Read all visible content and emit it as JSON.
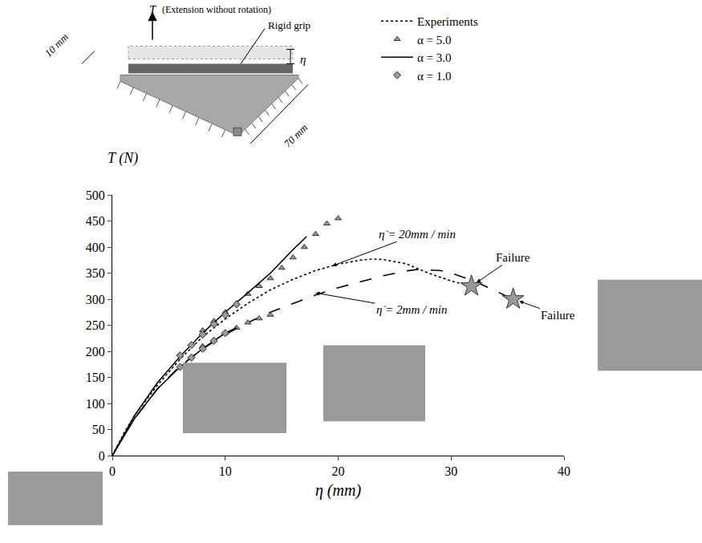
{
  "chart_data": {
    "type": "line",
    "x_label": "η (mm)",
    "y_label": "T (N)",
    "xlim": [
      0,
      40
    ],
    "xticks": [
      0,
      10,
      20,
      30,
      40
    ],
    "ylim": [
      0,
      500
    ],
    "yticks": [
      0,
      50,
      100,
      150,
      200,
      250,
      300,
      350,
      400,
      450,
      500
    ],
    "grid": false,
    "legend": "top right",
    "series": [
      {
        "name": "Experiments",
        "type": "line",
        "line_style": "dot",
        "color": "#000000",
        "x": [
          0,
          1,
          2,
          4,
          6,
          8,
          10,
          12,
          14,
          16,
          18,
          20,
          22,
          23,
          24,
          26,
          28,
          30,
          31.8
        ],
        "values": [
          0,
          42,
          78,
          135,
          185,
          228,
          262,
          292,
          318,
          338,
          355,
          367,
          375,
          377,
          376,
          368,
          350,
          335,
          325
        ]
      },
      {
        "name": "Experiments",
        "type": "line",
        "line_style": "longdash",
        "color": "#000000",
        "x": [
          0,
          1,
          2,
          4,
          6,
          8,
          10,
          12,
          14,
          16,
          18,
          20,
          22,
          24,
          26,
          27,
          28,
          29,
          30,
          32,
          34,
          35.5
        ],
        "values": [
          0,
          38,
          72,
          128,
          172,
          205,
          232,
          255,
          275,
          292,
          308,
          322,
          334,
          345,
          354,
          357,
          356,
          355,
          350,
          335,
          315,
          300
        ]
      },
      {
        "name": "α = 5.0",
        "type": "scatter",
        "marker": "triangle-up",
        "color": "#999999",
        "x": [
          8,
          9,
          10,
          11,
          12,
          13,
          14,
          15,
          16,
          17,
          18,
          19,
          20,
          8,
          9,
          10,
          11,
          12,
          13,
          14
        ],
        "values": [
          240,
          258,
          275,
          292,
          310,
          325,
          340,
          360,
          380,
          400,
          425,
          445,
          455,
          210,
          222,
          235,
          245,
          255,
          263,
          270
        ]
      },
      {
        "name": "α = 3.0",
        "type": "line",
        "line_style": "solid",
        "color": "#000000",
        "x": [
          0,
          2,
          4,
          6,
          8,
          10,
          12,
          14,
          16,
          17.2,
          null,
          0,
          2,
          4,
          6,
          8,
          10,
          11
        ],
        "values": [
          0,
          78,
          140,
          190,
          235,
          275,
          312,
          350,
          395,
          420,
          null,
          0,
          72,
          128,
          170,
          205,
          235,
          245
        ]
      },
      {
        "name": "α = 1.0",
        "type": "scatter",
        "marker": "diamond",
        "color": "#999999",
        "x": [
          6,
          7,
          8,
          9,
          10,
          11,
          6,
          7,
          8,
          9,
          10
        ],
        "values": [
          192,
          212,
          232,
          252,
          270,
          290,
          170,
          188,
          205,
          220,
          235
        ]
      }
    ],
    "failures": {
      "marker": "star",
      "color": "#999999",
      "points": [
        {
          "x": 31.8,
          "y": 325,
          "label": "Failure",
          "label_x": 35.5,
          "label_y": 380
        },
        {
          "x": 35.5,
          "y": 300,
          "label": "Failure",
          "label_x": 39.5,
          "label_y": 270
        }
      ]
    },
    "annotations": [
      {
        "text": "η̇ = 20mm / min",
        "x": 27,
        "y": 425,
        "arrow_x": 19.5,
        "arrow_y": 364
      },
      {
        "text": "η̇ = 2mm / min",
        "x": 26.5,
        "y": 280,
        "arrow_x": 18,
        "arrow_y": 312
      }
    ],
    "schematic": {
      "force_label": "T",
      "force_note": "(Extension without rotation)",
      "grip_label": "Rigid grip",
      "displacement_label": "η",
      "width_label": "10 mm",
      "length_label": "70 mm"
    }
  }
}
